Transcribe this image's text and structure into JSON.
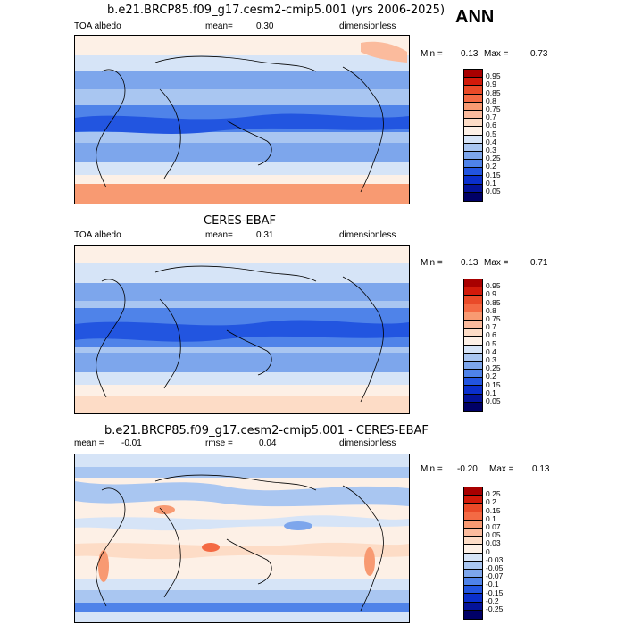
{
  "season": "ANN",
  "panels": [
    {
      "title": "b.e21.BRCP85.f09_g17.cesm2-cmip5.001 (yrs 2006-2025)",
      "left_label": "TOA albedo",
      "center_label": "mean=",
      "center_value": "0.30",
      "right_label": "dimensionless",
      "min_label": "Min =",
      "min_value": "0.13",
      "max_label": "Max =",
      "max_value": "0.73",
      "levels": [
        "0.95",
        "0.9",
        "0.85",
        "0.8",
        "0.75",
        "0.7",
        "0.6",
        "0.5",
        "0.4",
        "0.3",
        "0.25",
        "0.2",
        "0.15",
        "0.1",
        "0.05"
      ],
      "colors": [
        "#a80000",
        "#d21a0a",
        "#ea4a28",
        "#f46a44",
        "#f89a72",
        "#fbbb9d",
        "#fddcc6",
        "#fdf0e6",
        "#d6e4f7",
        "#a9c6f1",
        "#7da6ec",
        "#4f83e9",
        "#2255e0",
        "#0a2fcc",
        "#04139a",
        "#000066"
      ]
    },
    {
      "title": "CERES-EBAF",
      "left_label": "TOA albedo",
      "center_label": "mean=",
      "center_value": "0.31",
      "right_label": "dimensionless",
      "min_label": "Min =",
      "min_value": "0.13",
      "max_label": "Max =",
      "max_value": "0.71",
      "levels": [
        "0.95",
        "0.9",
        "0.85",
        "0.8",
        "0.75",
        "0.7",
        "0.6",
        "0.5",
        "0.4",
        "0.3",
        "0.25",
        "0.2",
        "0.15",
        "0.1",
        "0.05"
      ],
      "colors": [
        "#a80000",
        "#d21a0a",
        "#ea4a28",
        "#f46a44",
        "#f89a72",
        "#fbbb9d",
        "#fddcc6",
        "#fdf0e6",
        "#d6e4f7",
        "#a9c6f1",
        "#7da6ec",
        "#4f83e9",
        "#2255e0",
        "#0a2fcc",
        "#04139a",
        "#000066"
      ]
    },
    {
      "title": "b.e21.BRCP85.f09_g17.cesm2-cmip5.001 - CERES-EBAF",
      "left_label": "mean =",
      "left_value": "-0.01",
      "center_label": "rmse =",
      "center_value": "0.04",
      "right_label": "dimensionless",
      "min_label": "Min =",
      "min_value": "-0.20",
      "max_label": "Max =",
      "max_value": "0.13",
      "levels": [
        "0.25",
        "0.2",
        "0.15",
        "0.1",
        "0.07",
        "0.05",
        "0.03",
        "0",
        "-0.03",
        "-0.05",
        "-0.07",
        "-0.1",
        "-0.15",
        "-0.2",
        "-0.25"
      ],
      "colors": [
        "#a80000",
        "#d21a0a",
        "#ea4a28",
        "#f46a44",
        "#f89a72",
        "#fbbb9d",
        "#fddcc6",
        "#fdf0e6",
        "#d6e4f7",
        "#a9c6f1",
        "#7da6ec",
        "#4f83e9",
        "#2255e0",
        "#0a2fcc",
        "#04139a",
        "#000066"
      ]
    }
  ]
}
